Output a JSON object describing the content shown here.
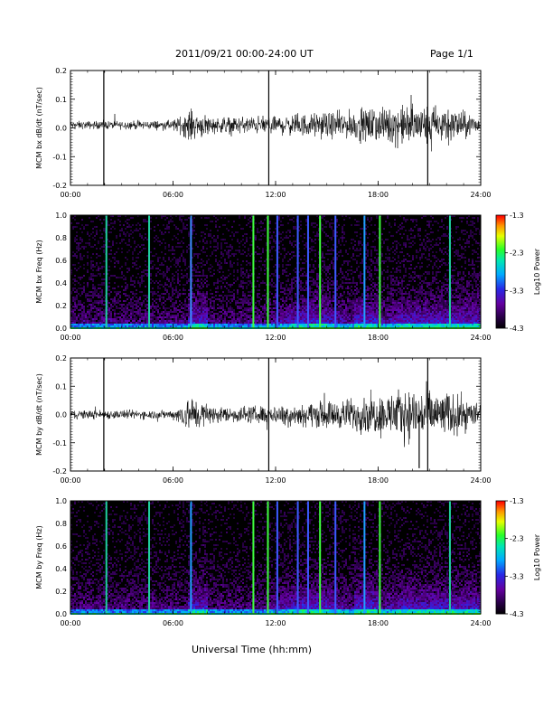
{
  "header": {
    "date_range": "2011/09/21  00:00-24:00 UT",
    "page": "Page 1/1"
  },
  "xlabel": "Universal Time (hh:mm)",
  "colors": {
    "background": "#000000",
    "trace": "#000000",
    "axis": "#000000"
  },
  "chart_data": [
    {
      "type": "line",
      "ylabel": "MCM bx dB/dt (nT/sec)",
      "x_ticks": [
        "00:00",
        "06:00",
        "12:00",
        "18:00",
        "24:00"
      ],
      "y_ticks": [
        "0.2",
        "0.1",
        "0.0",
        "-0.1",
        "-0.2"
      ],
      "xlim_hours": [
        0,
        24
      ],
      "ylim": [
        -0.2,
        0.2
      ],
      "baseline": 0.01,
      "noise_envelope": [
        {
          "hour": 0,
          "amp": 0.01
        },
        {
          "hour": 6,
          "amp": 0.012
        },
        {
          "hour": 7,
          "amp": 0.04
        },
        {
          "hour": 8.5,
          "amp": 0.02
        },
        {
          "hour": 12,
          "amp": 0.025
        },
        {
          "hour": 16,
          "amp": 0.035
        },
        {
          "hour": 20,
          "amp": 0.055
        },
        {
          "hour": 22,
          "amp": 0.05
        },
        {
          "hour": 24,
          "amp": 0.02
        }
      ],
      "spikes": [
        {
          "hour": 1.95,
          "min": -0.2,
          "max": 0.2
        },
        {
          "hour": 11.6,
          "min": -0.2,
          "max": 0.2
        },
        {
          "hour": 20.9,
          "min": -0.2,
          "max": 0.2
        }
      ]
    },
    {
      "type": "heatmap",
      "ylabel": "MCM bx Freq (Hz)",
      "x_ticks": [
        "00:00",
        "06:00",
        "12:00",
        "18:00",
        "24:00"
      ],
      "y_ticks": [
        "1.0",
        "0.8",
        "0.6",
        "0.4",
        "0.2",
        "0.0"
      ],
      "xlim_hours": [
        0,
        24
      ],
      "ylim": [
        0,
        1.0
      ],
      "colorbar": {
        "label": "Log10 Power",
        "ticks": [
          "-1.3",
          "-2.3",
          "-3.3",
          "-4.3"
        ],
        "range": [
          -4.3,
          -1.3
        ]
      },
      "lines": [
        {
          "hour": 2.1,
          "color": "#20d0a0"
        },
        {
          "hour": 4.6,
          "color": "#20d0a0"
        },
        {
          "hour": 7.05,
          "color": "#3b8cff"
        },
        {
          "hour": 10.7,
          "color": "#40ff40"
        },
        {
          "hour": 11.55,
          "color": "#40ff40"
        },
        {
          "hour": 12.1,
          "color": "#3b5cff"
        },
        {
          "hour": 13.3,
          "color": "#3b5cff"
        },
        {
          "hour": 13.9,
          "color": "#3b5cff"
        },
        {
          "hour": 14.6,
          "color": "#40ff40"
        },
        {
          "hour": 15.5,
          "color": "#3b5cff"
        },
        {
          "hour": 17.2,
          "color": "#20a0ff"
        },
        {
          "hour": 18.1,
          "color": "#40ff40"
        },
        {
          "hour": 22.2,
          "color": "#20d0a0"
        }
      ]
    },
    {
      "type": "line",
      "ylabel": "MCM by dB/dt (nT/sec)",
      "x_ticks": [
        "00:00",
        "06:00",
        "12:00",
        "18:00",
        "24:00"
      ],
      "y_ticks": [
        "0.2",
        "0.1",
        "0.0",
        "-0.1",
        "-0.2"
      ],
      "xlim_hours": [
        0,
        24
      ],
      "ylim": [
        -0.2,
        0.2
      ],
      "baseline": 0.0,
      "noise_envelope": [
        {
          "hour": 0,
          "amp": 0.012
        },
        {
          "hour": 6,
          "amp": 0.012
        },
        {
          "hour": 7,
          "amp": 0.05
        },
        {
          "hour": 8.5,
          "amp": 0.02
        },
        {
          "hour": 12,
          "amp": 0.025
        },
        {
          "hour": 16,
          "amp": 0.04
        },
        {
          "hour": 20,
          "amp": 0.07
        },
        {
          "hour": 22,
          "amp": 0.06
        },
        {
          "hour": 24,
          "amp": 0.03
        }
      ],
      "spikes": [
        {
          "hour": 1.95,
          "min": -0.2,
          "max": 0.2
        },
        {
          "hour": 11.6,
          "min": -0.2,
          "max": 0.2
        },
        {
          "hour": 20.4,
          "min": -0.19,
          "max": 0.0
        },
        {
          "hour": 20.9,
          "min": -0.2,
          "max": 0.2
        }
      ]
    },
    {
      "type": "heatmap",
      "ylabel": "MCM by Freq (Hz)",
      "x_ticks": [
        "00:00",
        "06:00",
        "12:00",
        "18:00",
        "24:00"
      ],
      "y_ticks": [
        "1.0",
        "0.8",
        "0.6",
        "0.4",
        "0.2",
        "0.0"
      ],
      "xlim_hours": [
        0,
        24
      ],
      "ylim": [
        0,
        1.0
      ],
      "colorbar": {
        "label": "Log10 Power",
        "ticks": [
          "-1.3",
          "-2.3",
          "-3.3",
          "-4.3"
        ],
        "range": [
          -4.3,
          -1.3
        ]
      },
      "lines": [
        {
          "hour": 2.1,
          "color": "#20d0a0"
        },
        {
          "hour": 4.6,
          "color": "#20d0a0"
        },
        {
          "hour": 7.05,
          "color": "#20a0ff"
        },
        {
          "hour": 10.7,
          "color": "#40ff40"
        },
        {
          "hour": 11.55,
          "color": "#40ff40"
        },
        {
          "hour": 12.1,
          "color": "#3b5cff"
        },
        {
          "hour": 13.3,
          "color": "#3b5cff"
        },
        {
          "hour": 13.9,
          "color": "#3b5cff"
        },
        {
          "hour": 14.6,
          "color": "#40ff40"
        },
        {
          "hour": 15.5,
          "color": "#3b5cff"
        },
        {
          "hour": 17.2,
          "color": "#20a0ff"
        },
        {
          "hour": 18.1,
          "color": "#40ff40"
        },
        {
          "hour": 22.2,
          "color": "#20d0a0"
        }
      ]
    }
  ]
}
